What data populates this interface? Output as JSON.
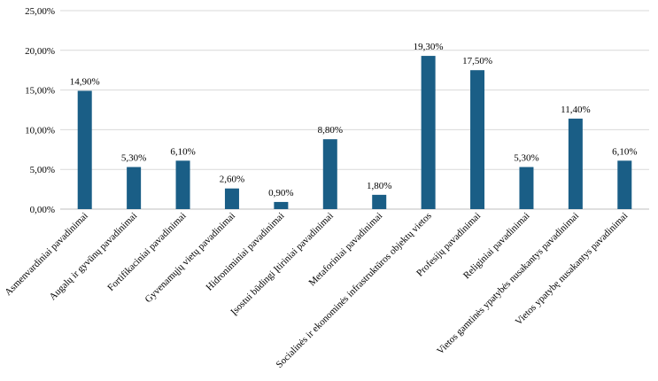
{
  "chart_data": {
    "type": "bar",
    "title": "",
    "xlabel": "",
    "ylabel": "",
    "ylim": [
      0,
      25
    ],
    "y_ticks": [
      "0,00%",
      "5,00%",
      "10,00%",
      "15,00%",
      "20,00%",
      "25,00%"
    ],
    "grid": true,
    "legend": "none",
    "bar_color": "#1a5e86",
    "categories": [
      "Asmenvardiniai pavadinimai",
      "Augalų ir gyvūnų pavadinimai",
      "Fortifikaciniai pavadinimai",
      "Gyvenamųjų vietų pavadinimai",
      "Hidroniminiai pavadinimai",
      "Įsostui būdingi Įtiriniai pavadinimai",
      "Metaforiniai pavadinimai",
      "Socialinės ir ekonominės infrastruktūros objektų vietos",
      "Profesijų pavadinimai",
      "Religiniai pavadinimai",
      "Vietos gamtinės ypatybės nusakantys pavadinimai",
      "Vietos ypatybę nusakantys pavadinimai"
    ],
    "values": [
      14.9,
      5.3,
      6.1,
      2.6,
      0.9,
      8.8,
      1.8,
      19.3,
      17.5,
      5.3,
      11.4,
      6.1
    ],
    "data_labels": [
      "14,90%",
      "5,30%",
      "6,10%",
      "2,60%",
      "0,90%",
      "8,80%",
      "1,80%",
      "19,30%",
      "17,50%",
      "5,30%",
      "11,40%",
      "6,10%"
    ]
  }
}
